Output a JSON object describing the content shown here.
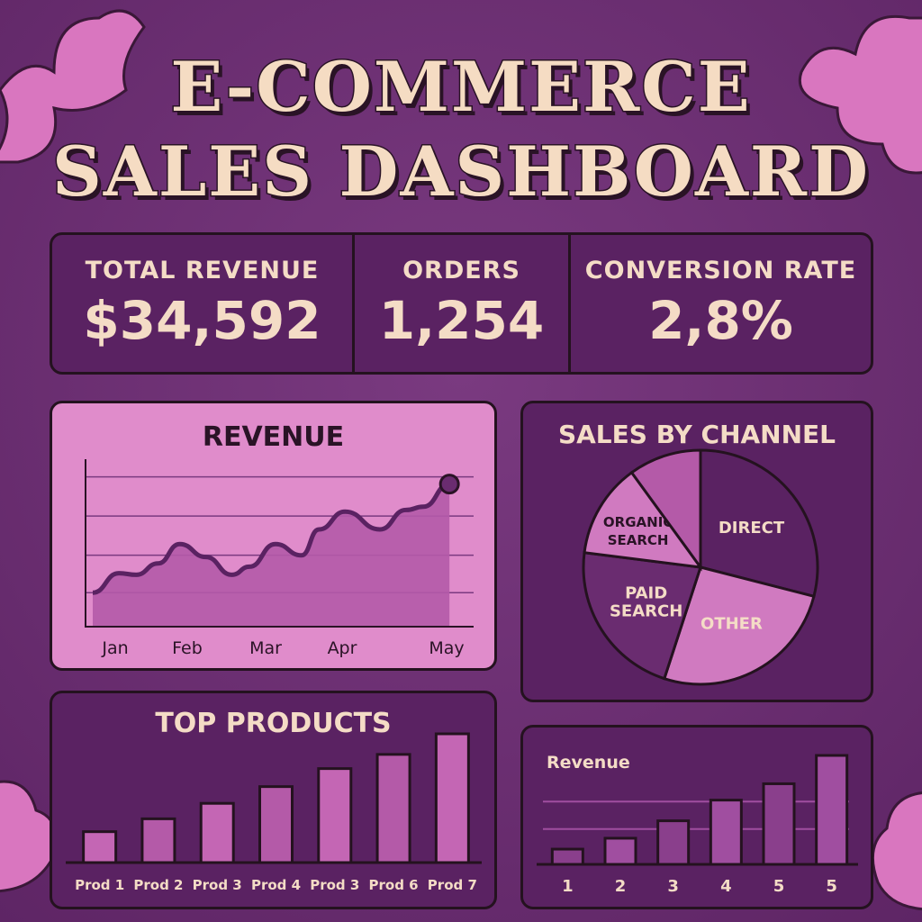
{
  "header": {
    "line1": "E-COMMERCE",
    "line2": "SALES DASHBOARD"
  },
  "kpis": [
    {
      "label": "TOTAL REVENUE",
      "value": "$34,592"
    },
    {
      "label": "ORDERS",
      "value": "1,254"
    },
    {
      "label": "CONVERSION RATE",
      "value": "2,8%"
    }
  ],
  "colors": {
    "background": "#6a2c70",
    "panel": "#5a2262",
    "pink": "#e08ccb",
    "bar": "#b45aa8",
    "text": "#f4dcc6",
    "outline": "#24121f"
  },
  "chart_data": [
    {
      "type": "area",
      "title": "REVENUE",
      "x_labels": [
        "Jan",
        "Feb",
        "Mar",
        "Apr",
        "May"
      ],
      "x": [
        0,
        0.3,
        0.5,
        0.75,
        1.0,
        1.3,
        1.6,
        1.8,
        2.1,
        2.4,
        2.6,
        2.9,
        3.3,
        3.6,
        3.8,
        4.1
      ],
      "values": [
        21,
        33,
        32,
        39,
        51,
        43,
        32,
        37,
        51,
        44,
        60,
        71,
        60,
        72,
        74,
        88
      ],
      "ylim": [
        0,
        100
      ],
      "grid": true
    },
    {
      "type": "pie",
      "title": "SALES BY CHANNEL",
      "slices": [
        {
          "label": "DIRECT",
          "value": 29
        },
        {
          "label": "OTHER",
          "value": 26
        },
        {
          "label": "PAID SEARCH",
          "value": 22
        },
        {
          "label": "ORGANIC SEARCH",
          "value": 13
        },
        {
          "label": "",
          "value": 10
        }
      ]
    },
    {
      "type": "bar",
      "title": "TOP PRODUCTS",
      "categories": [
        "Prod 1",
        "Prod 2",
        "Prod 3",
        "Prod 4",
        "Prod 3",
        "Prod 6",
        "Prod 7"
      ],
      "values": [
        24,
        34,
        46,
        59,
        73,
        84,
        100
      ]
    },
    {
      "type": "bar",
      "title": "Revenue",
      "categories": [
        "1",
        "2",
        "3",
        "4",
        "5",
        "5"
      ],
      "values": [
        14,
        24,
        40,
        59,
        74,
        100
      ],
      "grid": true
    }
  ]
}
